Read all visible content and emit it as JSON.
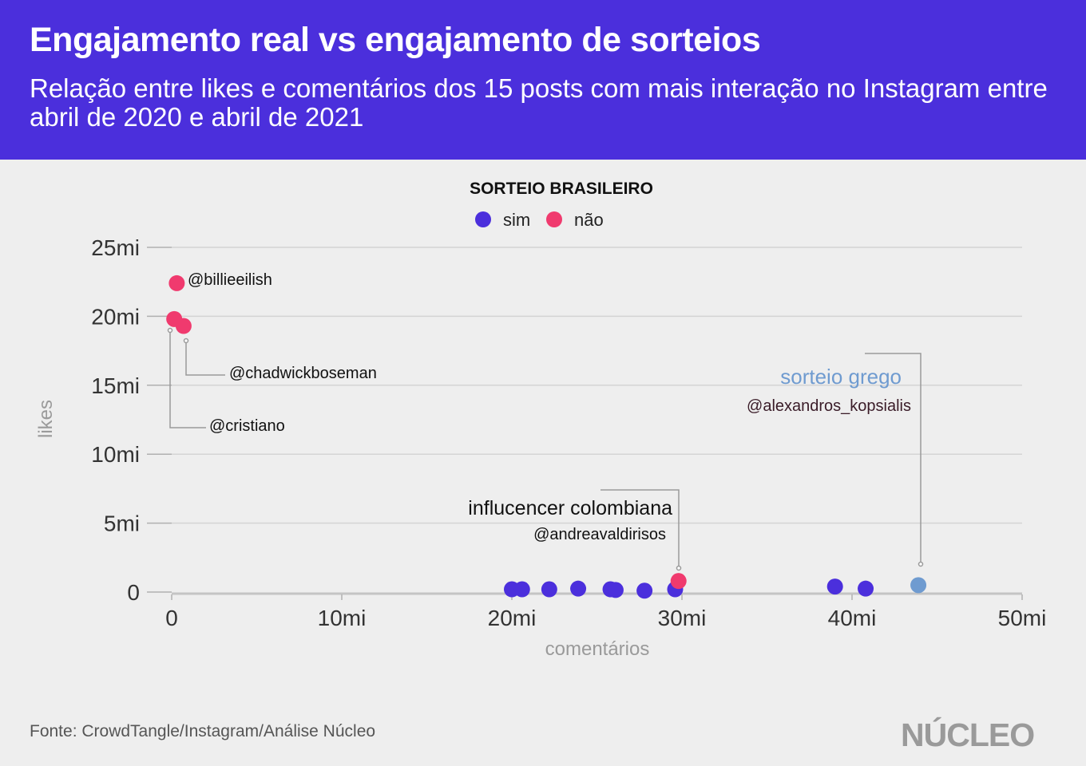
{
  "header": {
    "title": "Engajamento real vs engajamento de sorteios",
    "subtitle": "Relação entre likes e comentários dos 15 posts com mais interação no Instagram entre abril de 2020 e abril de 2021"
  },
  "footer": {
    "source": "Fonte: CrowdTangle/Instagram/Análise Núcleo",
    "logo": "NÚCLEO"
  },
  "colors": {
    "header_bg": "#4b2fdc",
    "sim": "#4b2fdc",
    "nao": "#f03a6e",
    "grego": "#6f9bd0"
  },
  "chart_data": {
    "type": "scatter",
    "xlabel": "comentários",
    "ylabel": "likes",
    "xlim": [
      0,
      50000000
    ],
    "ylim": [
      0,
      25000000
    ],
    "xticks": [
      0,
      10000000,
      20000000,
      30000000,
      40000000,
      50000000
    ],
    "xtick_labels": [
      "0",
      "10mi",
      "20mi",
      "30mi",
      "40mi",
      "50mi"
    ],
    "yticks": [
      0,
      5000000,
      10000000,
      15000000,
      20000000,
      25000000
    ],
    "ytick_labels": [
      "0",
      "5mi",
      "10mi",
      "15mi",
      "20mi",
      "25mi"
    ],
    "legend": {
      "title": "SORTEIO BRASILEIRO",
      "position": "top-center",
      "items": [
        {
          "label": "sim",
          "key": "sim"
        },
        {
          "label": "não",
          "key": "nao"
        }
      ]
    },
    "points": [
      {
        "x": 300000,
        "y": 22400000,
        "group": "nao"
      },
      {
        "x": 150000,
        "y": 19800000,
        "group": "nao"
      },
      {
        "x": 700000,
        "y": 19300000,
        "group": "nao"
      },
      {
        "x": 20000000,
        "y": 200000,
        "group": "sim"
      },
      {
        "x": 20600000,
        "y": 200000,
        "group": "sim"
      },
      {
        "x": 22200000,
        "y": 200000,
        "group": "sim"
      },
      {
        "x": 23900000,
        "y": 250000,
        "group": "sim"
      },
      {
        "x": 25800000,
        "y": 200000,
        "group": "sim"
      },
      {
        "x": 26100000,
        "y": 150000,
        "group": "sim"
      },
      {
        "x": 27800000,
        "y": 100000,
        "group": "sim"
      },
      {
        "x": 29600000,
        "y": 200000,
        "group": "sim"
      },
      {
        "x": 29800000,
        "y": 800000,
        "group": "nao"
      },
      {
        "x": 39000000,
        "y": 400000,
        "group": "sim"
      },
      {
        "x": 40800000,
        "y": 250000,
        "group": "sim"
      },
      {
        "x": 43900000,
        "y": 500000,
        "group": "grego"
      }
    ],
    "annotations": [
      {
        "id": "billie",
        "text": "@billieeilish"
      },
      {
        "id": "chadwick",
        "text": "@chadwickboseman"
      },
      {
        "id": "cristiano",
        "text": "@cristiano"
      },
      {
        "id": "colombiana_title",
        "text": "influcencer colombiana"
      },
      {
        "id": "colombiana_handle",
        "text": "@andreavaldirisos"
      },
      {
        "id": "grego_title",
        "text": "sorteio grego"
      },
      {
        "id": "grego_handle",
        "text": "@alexandros_kopsialis"
      }
    ]
  }
}
